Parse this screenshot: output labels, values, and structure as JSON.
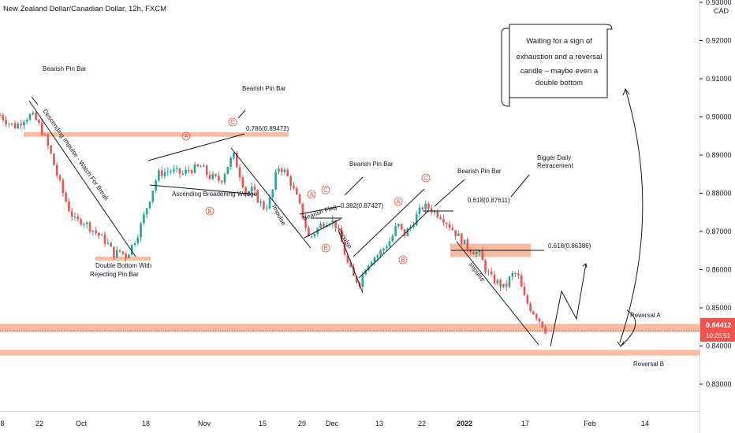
{
  "chart_data": {
    "type": "candlestick",
    "title": "New Zealand Dollar/Canadian Dollar, 12h, FXCM",
    "currency": "CAD",
    "y_axis": {
      "ticks": [
        0.93,
        0.92,
        0.91,
        0.9,
        0.89,
        0.88,
        0.87,
        0.86,
        0.85,
        0.84,
        0.83
      ],
      "tick_labels": [
        "0.93000",
        "0.92000",
        "0.91000",
        "0.90000",
        "0.89000",
        "0.88000",
        "0.87000",
        "0.86000",
        "0.85000",
        "0.84000",
        "0.83000"
      ],
      "range": [
        0.8255,
        0.9335
      ]
    },
    "x_axis": {
      "tick_labels": [
        "8",
        "22",
        "Oct",
        "18",
        "Nov",
        "15",
        "29",
        "Dec",
        "13",
        "22",
        "2022",
        "17",
        "Feb",
        "14"
      ]
    },
    "price_label": {
      "value": "0.84412",
      "countdown": "10:26:51",
      "price": 0.84412
    },
    "price_path": [
      [
        0,
        0.9005
      ],
      [
        10,
        0.8985
      ],
      [
        20,
        0.8975
      ],
      [
        30,
        0.8995
      ],
      [
        40,
        0.9005
      ],
      [
        48,
        0.8985
      ],
      [
        56,
        0.895
      ],
      [
        64,
        0.8905
      ],
      [
        72,
        0.885
      ],
      [
        80,
        0.88
      ],
      [
        88,
        0.8755
      ],
      [
        96,
        0.8725
      ],
      [
        104,
        0.873
      ],
      [
        112,
        0.8715
      ],
      [
        120,
        0.87
      ],
      [
        128,
        0.8685
      ],
      [
        136,
        0.867
      ],
      [
        144,
        0.864
      ],
      [
        152,
        0.8648
      ],
      [
        160,
        0.8635
      ],
      [
        168,
        0.8665
      ],
      [
        176,
        0.87
      ],
      [
        184,
        0.875
      ],
      [
        192,
        0.88
      ],
      [
        200,
        0.885
      ],
      [
        208,
        0.8855
      ],
      [
        216,
        0.886
      ],
      [
        224,
        0.8855
      ],
      [
        232,
        0.885
      ],
      [
        240,
        0.8862
      ],
      [
        248,
        0.8865
      ],
      [
        256,
        0.887
      ],
      [
        264,
        0.8845
      ],
      [
        272,
        0.884
      ],
      [
        280,
        0.8832
      ],
      [
        288,
        0.887
      ],
      [
        296,
        0.89
      ],
      [
        304,
        0.885
      ],
      [
        312,
        0.88
      ],
      [
        320,
        0.881
      ],
      [
        328,
        0.878
      ],
      [
        336,
        0.876
      ],
      [
        344,
        0.879
      ],
      [
        352,
        0.887
      ],
      [
        360,
        0.886
      ],
      [
        368,
        0.883
      ],
      [
        376,
        0.879
      ],
      [
        384,
        0.874
      ],
      [
        392,
        0.868
      ],
      [
        400,
        0.87
      ],
      [
        408,
        0.872
      ],
      [
        416,
        0.873
      ],
      [
        424,
        0.8725
      ],
      [
        432,
        0.868
      ],
      [
        440,
        0.862
      ],
      [
        448,
        0.858
      ],
      [
        456,
        0.8565
      ],
      [
        464,
        0.861
      ],
      [
        472,
        0.863
      ],
      [
        480,
        0.864
      ],
      [
        488,
        0.866
      ],
      [
        496,
        0.868
      ],
      [
        504,
        0.872
      ],
      [
        512,
        0.869
      ],
      [
        520,
        0.871
      ],
      [
        528,
        0.874
      ],
      [
        536,
        0.8765
      ],
      [
        544,
        0.8762
      ],
      [
        552,
        0.875
      ],
      [
        560,
        0.874
      ],
      [
        568,
        0.872
      ],
      [
        576,
        0.87
      ],
      [
        584,
        0.868
      ],
      [
        592,
        0.866
      ],
      [
        600,
        0.865
      ],
      [
        608,
        0.864
      ],
      [
        616,
        0.86
      ],
      [
        624,
        0.8575
      ],
      [
        632,
        0.8565
      ],
      [
        640,
        0.855
      ],
      [
        648,
        0.8585
      ],
      [
        656,
        0.859
      ],
      [
        664,
        0.853
      ],
      [
        672,
        0.85
      ],
      [
        680,
        0.848
      ],
      [
        688,
        0.8455
      ],
      [
        692,
        0.8441
      ]
    ],
    "zones": [
      {
        "name": "fib-0786-zone",
        "price_top": 0.896,
        "price_bottom": 0.8948
      },
      {
        "name": "double-bottom-zone",
        "price_top": 0.8634,
        "price_bottom": 0.8624
      },
      {
        "name": "fib-0618-zone",
        "price_top": 0.8668,
        "price_bottom": 0.8633
      },
      {
        "name": "reversal-a-zone",
        "price_top": 0.8458,
        "price_bottom": 0.8436
      },
      {
        "name": "reversal-b-zone",
        "price_top": 0.839,
        "price_bottom": 0.8375
      }
    ],
    "annotations": {
      "bearish_pin_bar": "Bearish Pin Bar",
      "descending_impulse": "Descending Impulse - Watch For Break",
      "double_bottom": "Double Bottom With",
      "rejecting_pin_bar": "Rejecting Pin Bar",
      "ascending_wedge": "Ascending Broadening Wedge",
      "impulse": "Impulse",
      "bearish_flag": "Bearish Flag",
      "fib_0786": "0.786(0.89472)",
      "fib_0382": "0.382(0.87427)",
      "fib_0618_a": "0.618(0.87611)",
      "fib_0618_b": "0.618(0.86386)",
      "bigger_daily_1": "Bigger Daily",
      "bigger_daily_2": "Retracement",
      "reversal_a": "Reversal A",
      "reversal_b": "Reversal B",
      "note": [
        "Waiting for a sign of",
        "exhaustion and a reversal",
        "candle – maybe even a",
        "double bottom"
      ],
      "wave_a": "A",
      "wave_b": "B",
      "wave_c": "C"
    },
    "colors": {
      "up": "#26a69a",
      "down": "#ef5350",
      "zone": "#f4a582",
      "price_tag": "#ef5350",
      "wave_label": "#e8533c"
    }
  }
}
